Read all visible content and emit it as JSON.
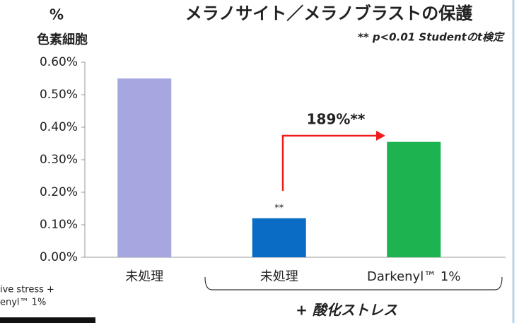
{
  "chart_data": {
    "type": "bar",
    "title": "メラノサイト／メラノブラストの保護",
    "y_unit": "%",
    "y_label": "色素細胞",
    "subtitle": "** p<0.01 Studentのt検定",
    "categories": [
      "未処理",
      "未処理",
      "Darkenyl™ 1%"
    ],
    "values": [
      0.55,
      0.12,
      0.355
    ],
    "value_labels": [
      null,
      "**",
      null
    ],
    "colors": [
      "#a6a6e0",
      "#0a6cc4",
      "#1db350"
    ],
    "ylim": [
      0,
      0.6
    ],
    "yticks": [
      {
        "value": 0,
        "label": "0.00%"
      },
      {
        "value": 0.1,
        "label": "0.10%"
      },
      {
        "value": 0.2,
        "label": "0.20%"
      },
      {
        "value": 0.3,
        "label": "0.30%"
      },
      {
        "value": 0.4,
        "label": "0.40%"
      },
      {
        "value": 0.5,
        "label": "0.50%"
      },
      {
        "value": 0.6,
        "label": "0.60%"
      }
    ],
    "grid": false,
    "annotation": "189%**",
    "group_label": "+ 酸化ストレス",
    "inset_lines": [
      "ive stress +",
      "enyl™ 1%"
    ]
  }
}
